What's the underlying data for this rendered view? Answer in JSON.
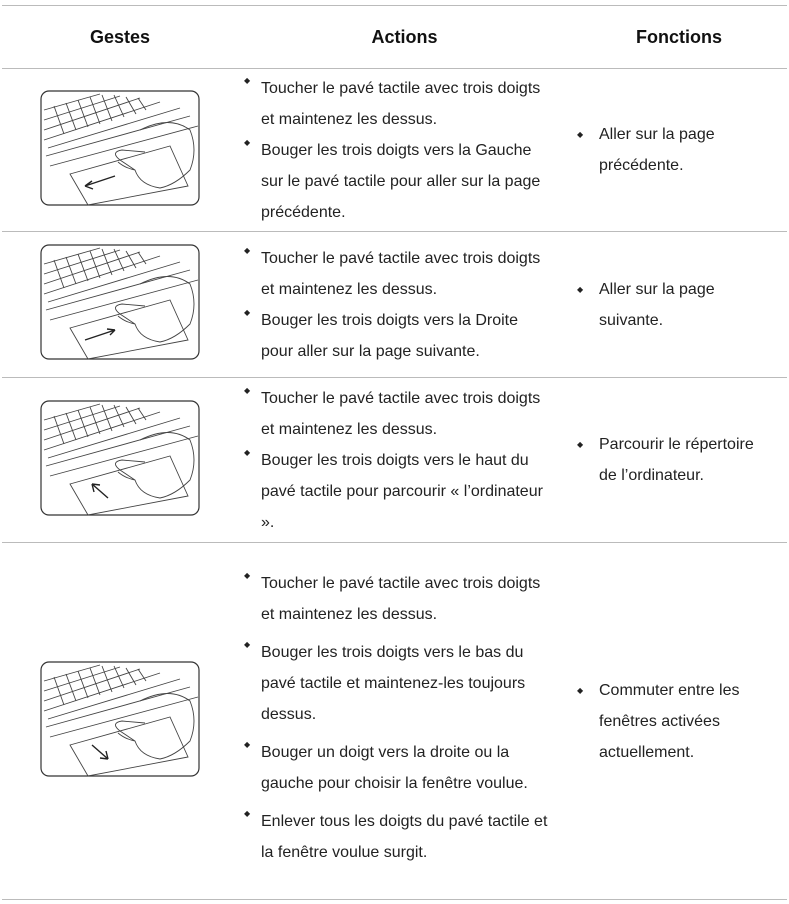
{
  "table": {
    "headers": [
      "Gestes",
      "Actions",
      "Fonctions"
    ],
    "rows": [
      {
        "actions": [
          "Toucher le pavé tactile avec trois doigts et maintenez les dessus.",
          "Bouger les trois doigts vers la Gauche sur le pavé tactile pour aller sur la page précédente."
        ],
        "functions": [
          "Aller sur la page précédente."
        ]
      },
      {
        "actions": [
          "Toucher le pavé tactile avec trois doigts et maintenez les dessus.",
          "Bouger les trois doigts vers la Droite pour aller sur la page suivante."
        ],
        "functions": [
          "Aller sur la page suivante."
        ]
      },
      {
        "actions": [
          "Toucher le pavé tactile avec trois doigts et maintenez les dessus.",
          "Bouger les trois doigts vers le haut du pavé tactile pour parcourir « l’ordinateur »."
        ],
        "functions": [
          "Parcourir le répertoire de l’ordinateur."
        ]
      },
      {
        "actions": [
          "Toucher le pavé tactile avec trois doigts et maintenez les dessus.",
          "Bouger les trois doigts vers le bas du pavé tactile et maintenez-les toujours dessus.",
          "Bouger un doigt vers la droite ou la gauche pour choisir la fenêtre voulue.",
          "Enlever tous les doigts du pavé tactile et la fenêtre voulue surgit."
        ],
        "functions": [
          "Commuter entre les fenêtres activées actuellement."
        ]
      }
    ]
  }
}
